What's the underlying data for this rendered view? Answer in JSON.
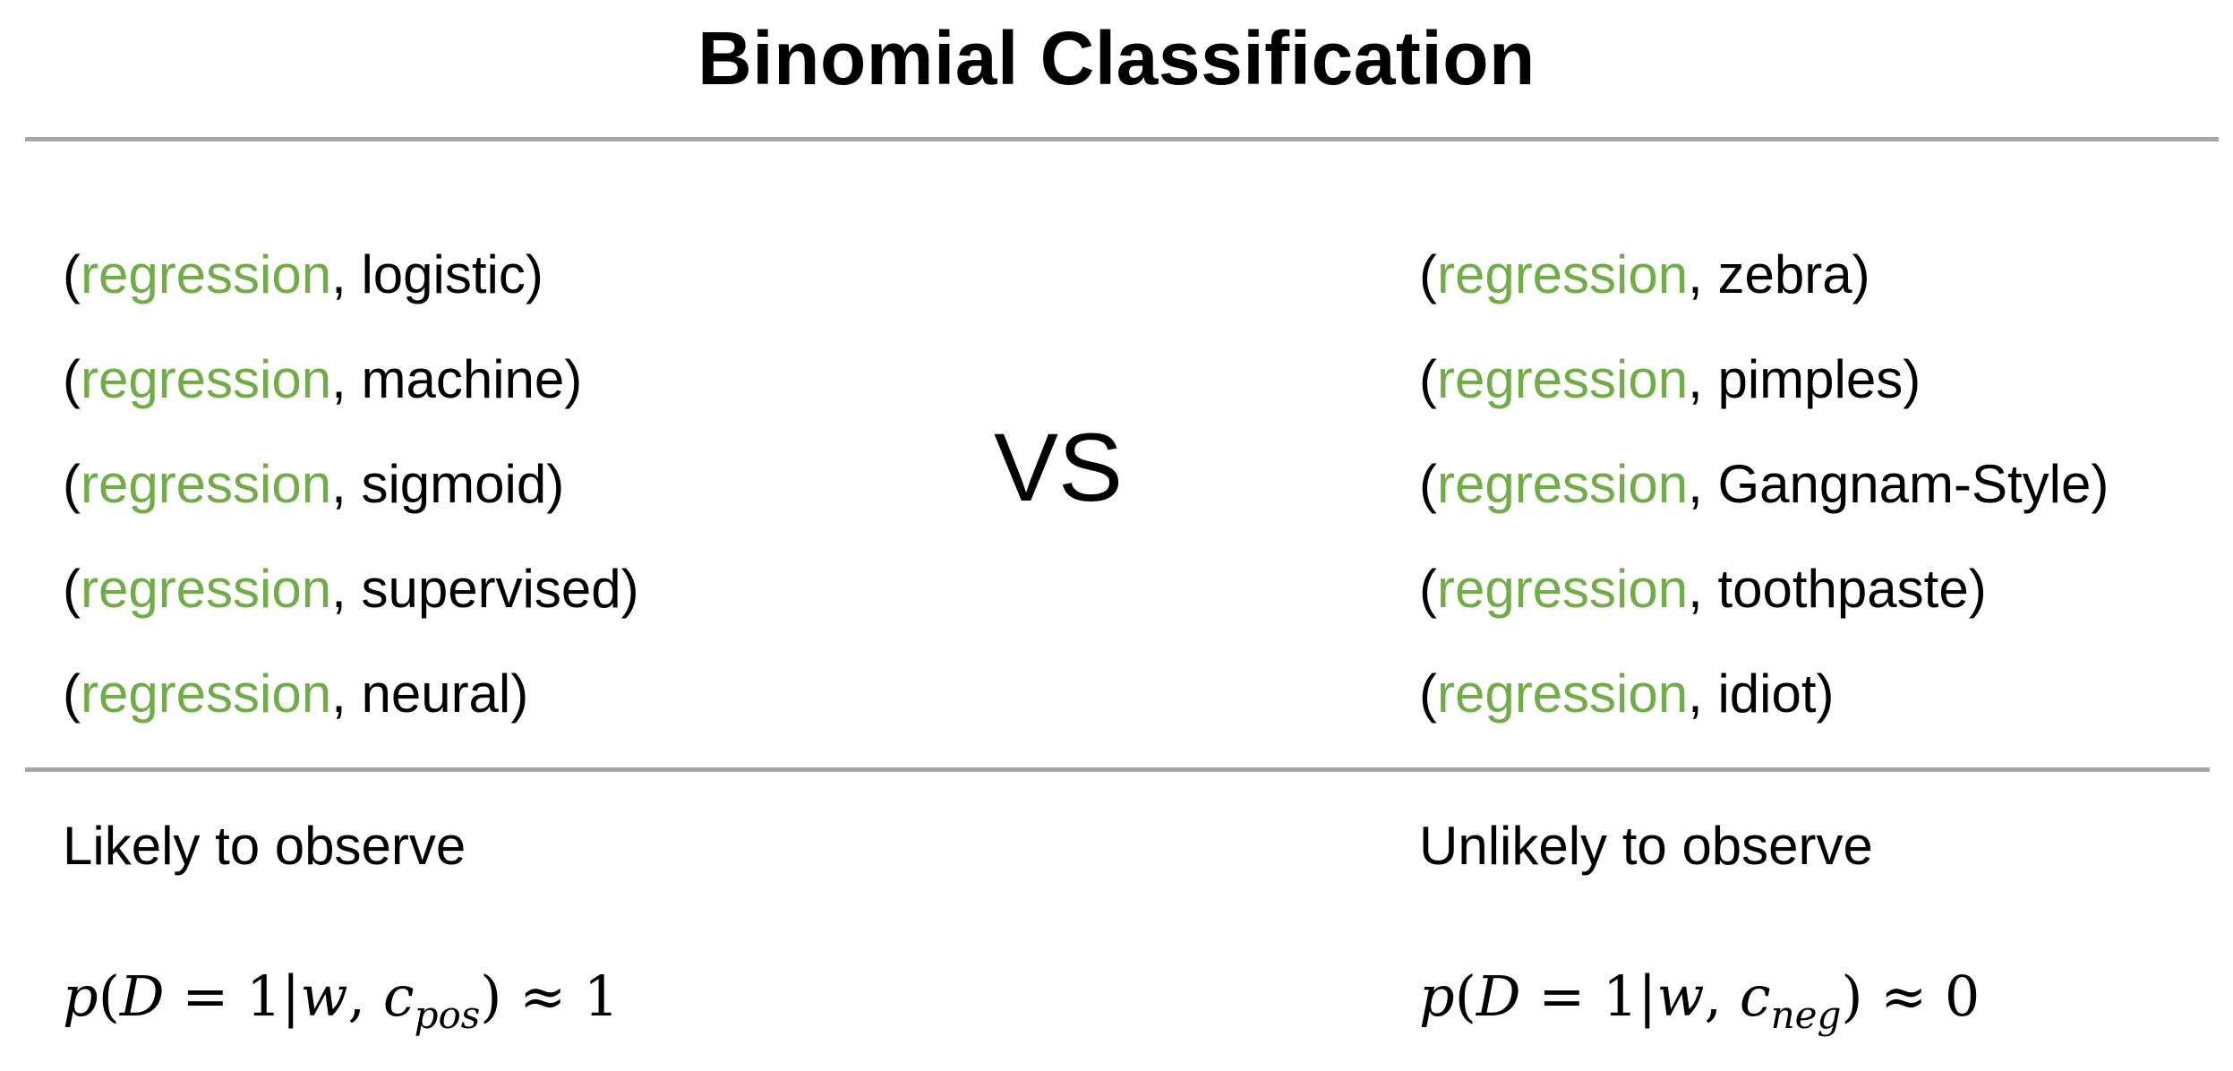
{
  "title": "Binomial Classification",
  "positive": {
    "pairs": [
      {
        "target": "regression",
        "context": "logistic"
      },
      {
        "target": "regression",
        "context": "machine"
      },
      {
        "target": "regression",
        "context": "sigmoid"
      },
      {
        "target": "regression",
        "context": "supervised"
      },
      {
        "target": "regression",
        "context": "neural"
      }
    ],
    "caption": "Likely to observe",
    "formula": {
      "func": "p",
      "open": "(",
      "var": "D",
      "eq": " = 1|",
      "word": "w",
      "sep": ", ",
      "ctx": "c",
      "sub": "pos",
      "close": ")",
      "approx": " ≈ 1"
    }
  },
  "vs_label": "VS",
  "negative": {
    "pairs": [
      {
        "target": "regression",
        "context": "zebra"
      },
      {
        "target": "regression",
        "context": "pimples"
      },
      {
        "target": "regression",
        "context": "Gangnam-Style"
      },
      {
        "target": "regression",
        "context": "toothpaste"
      },
      {
        "target": "regression",
        "context": "idiot"
      }
    ],
    "caption": "Unlikely to observe",
    "formula": {
      "func": "p",
      "open": "(",
      "var": "D",
      "eq": " = 1|",
      "word": "w",
      "sep": ", ",
      "ctx": "c",
      "sub": "neg",
      "close": ")",
      "approx": " ≈ 0"
    }
  },
  "colors": {
    "target_word": "#70ad47",
    "rule": "#a6a6a6"
  }
}
